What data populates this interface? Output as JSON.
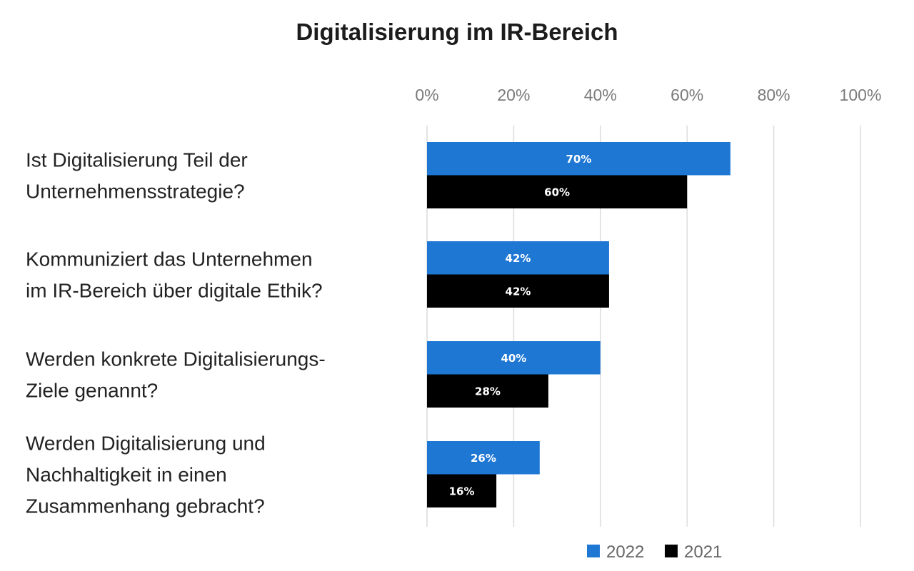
{
  "chart_data": {
    "type": "bar",
    "orientation": "horizontal",
    "title": "Digitalisierung im IR-Bereich",
    "categories": [
      [
        "Ist Digitalisierung Teil der",
        "Unternehmensstrategie?"
      ],
      [
        "Kommuniziert das Unternehmen",
        "im IR-Bereich über digitale Ethik?"
      ],
      [
        "Werden konkrete Digitalisierungs-",
        "Ziele genannt?"
      ],
      [
        "Werden Digitalisierung und",
        "Nachhaltigkeit in einen",
        "Zusammenhang gebracht?"
      ]
    ],
    "series": [
      {
        "name": "2022",
        "color": "#1f77d4",
        "values": [
          70,
          42,
          40,
          26
        ],
        "labels": [
          "70%",
          "42%",
          "40%",
          "26%"
        ]
      },
      {
        "name": "2021",
        "color": "#000000",
        "values": [
          60,
          42,
          28,
          16
        ],
        "labels": [
          "60%",
          "42%",
          "28%",
          "16%"
        ]
      }
    ],
    "xlim": [
      0,
      100
    ],
    "ticks": [
      0,
      20,
      40,
      60,
      80,
      100
    ],
    "tick_labels": [
      "0%",
      "20%",
      "40%",
      "60%",
      "80%",
      "100%"
    ],
    "grid": true,
    "legend_position": "bottom-right",
    "xlabel": "",
    "ylabel": ""
  }
}
